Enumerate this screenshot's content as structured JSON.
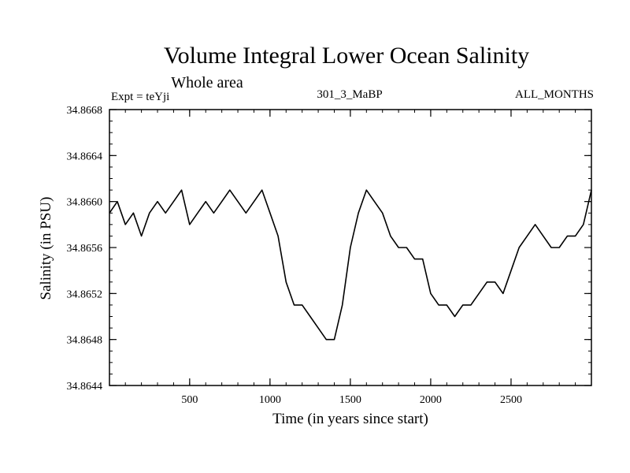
{
  "chart_data": {
    "type": "line",
    "title": "Volume Integral Lower Ocean Salinity",
    "subtitle": "Whole area",
    "left_label": "Expt = teYji",
    "center_label": "301_3_MaBP",
    "right_label": "ALL_MONTHS",
    "xlabel": "Time (in years since start)",
    "ylabel": "Salinity (in PSU)",
    "xlim": [
      1,
      3000
    ],
    "ylim": [
      34.8644,
      34.8668
    ],
    "xticks": [
      500,
      1000,
      1500,
      2000,
      2500
    ],
    "xtick_labels": [
      "500",
      "1000",
      "1500",
      "2000",
      "2500"
    ],
    "yticks": [
      34.8644,
      34.8648,
      34.8652,
      34.8656,
      34.866,
      34.8664,
      34.8668
    ],
    "ytick_labels": [
      "34.8644",
      "34.8648",
      "34.8652",
      "34.8656",
      "34.8660",
      "34.8664",
      "34.8668"
    ],
    "grid": false,
    "series": [
      {
        "name": "Salinity",
        "color": "#000000",
        "x": [
          1,
          50,
          100,
          150,
          200,
          250,
          300,
          350,
          400,
          450,
          500,
          550,
          600,
          650,
          700,
          750,
          800,
          850,
          900,
          950,
          1000,
          1050,
          1100,
          1150,
          1200,
          1250,
          1300,
          1350,
          1400,
          1450,
          1500,
          1550,
          1600,
          1650,
          1700,
          1750,
          1800,
          1850,
          1900,
          1950,
          2000,
          2050,
          2100,
          2150,
          2200,
          2250,
          2300,
          2350,
          2400,
          2450,
          2500,
          2550,
          2600,
          2650,
          2700,
          2750,
          2800,
          2850,
          2900,
          2950,
          3000
        ],
        "values": [
          34.8659,
          34.866,
          34.8658,
          34.8659,
          34.8657,
          34.8659,
          34.866,
          34.8659,
          34.866,
          34.8661,
          34.8658,
          34.8659,
          34.866,
          34.8659,
          34.866,
          34.8661,
          34.866,
          34.8659,
          34.866,
          34.8661,
          34.8659,
          34.8657,
          34.8653,
          34.8651,
          34.8651,
          34.865,
          34.8649,
          34.8648,
          34.8648,
          34.8651,
          34.8656,
          34.8659,
          34.8661,
          34.866,
          34.8659,
          34.8657,
          34.8656,
          34.8656,
          34.8655,
          34.8655,
          34.8652,
          34.8651,
          34.8651,
          34.865,
          34.8651,
          34.8651,
          34.8652,
          34.8653,
          34.8653,
          34.8652,
          34.8654,
          34.8656,
          34.8657,
          34.8658,
          34.8657,
          34.8656,
          34.8656,
          34.8657,
          34.8657,
          34.8658,
          34.8661
        ]
      }
    ]
  }
}
